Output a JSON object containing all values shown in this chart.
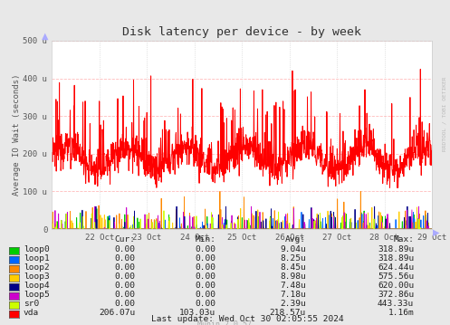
{
  "title": "Disk latency per device - by week",
  "ylabel": "Average IO Wait (seconds)",
  "background_color": "#e8e8e8",
  "plot_bg_color": "#ffffff",
  "ylim": [
    0,
    500
  ],
  "yticks": [
    0,
    100,
    200,
    300,
    400,
    500
  ],
  "ytick_labels": [
    "0",
    "100 u",
    "200 u",
    "300 u",
    "400 u",
    "500 u"
  ],
  "xtick_positions": [
    1,
    2,
    3,
    4,
    5,
    6,
    7,
    8
  ],
  "xtick_labels": [
    "22 Oct",
    "23 Oct",
    "24 Oct",
    "25 Oct",
    "26 Oct",
    "27 Oct",
    "28 Oct",
    "29 Oct"
  ],
  "series": [
    {
      "name": "loop0",
      "color": "#00cc00"
    },
    {
      "name": "loop1",
      "color": "#0066ff"
    },
    {
      "name": "loop2",
      "color": "#ff8800"
    },
    {
      "name": "loop3",
      "color": "#ffcc00"
    },
    {
      "name": "loop4",
      "color": "#000088"
    },
    {
      "name": "loop5",
      "color": "#cc00cc"
    },
    {
      "name": "sr0",
      "color": "#ccff00"
    },
    {
      "name": "vda",
      "color": "#ff0000"
    }
  ],
  "legend_data": [
    {
      "name": "loop0",
      "color": "#00cc00",
      "cur": "0.00",
      "min": "0.00",
      "avg": "9.04u",
      "max": "318.89u"
    },
    {
      "name": "loop1",
      "color": "#0066ff",
      "cur": "0.00",
      "min": "0.00",
      "avg": "8.25u",
      "max": "318.89u"
    },
    {
      "name": "loop2",
      "color": "#ff8800",
      "cur": "0.00",
      "min": "0.00",
      "avg": "8.45u",
      "max": "624.44u"
    },
    {
      "name": "loop3",
      "color": "#ffcc00",
      "cur": "0.00",
      "min": "0.00",
      "avg": "8.98u",
      "max": "575.56u"
    },
    {
      "name": "loop4",
      "color": "#000088",
      "cur": "0.00",
      "min": "0.00",
      "avg": "7.48u",
      "max": "620.00u"
    },
    {
      "name": "loop5",
      "color": "#cc00cc",
      "cur": "0.00",
      "min": "0.00",
      "avg": "7.18u",
      "max": "372.86u"
    },
    {
      "name": "sr0",
      "color": "#ccff00",
      "cur": "0.00",
      "min": "0.00",
      "avg": "2.39u",
      "max": "443.33u"
    },
    {
      "name": "vda",
      "color": "#ff0000",
      "cur": "206.07u",
      "min": "103.03u",
      "avg": "218.57u",
      "max": "1.16m"
    }
  ],
  "last_update": "Last update: Wed Oct 30 02:05:55 2024",
  "munin_version": "Munin 2.0.57",
  "rrdtool_label": "RRDTOOL / TOBI OETIKER",
  "arrow_color": "#aaaaff"
}
